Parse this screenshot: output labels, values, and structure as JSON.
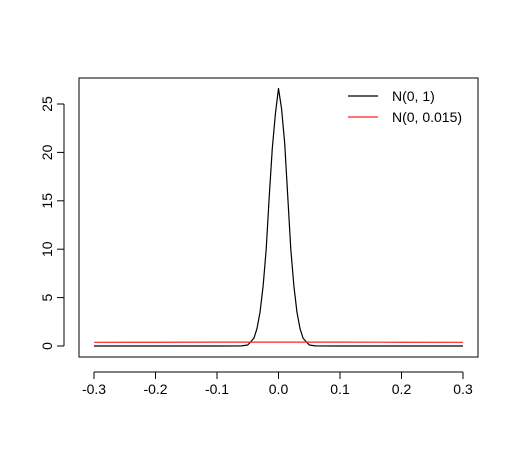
{
  "chart_data": {
    "type": "line",
    "title": "",
    "xlabel": "",
    "ylabel": "",
    "xlim": [
      -0.3,
      0.3
    ],
    "ylim": [
      0,
      26.6
    ],
    "xticks": [
      -0.3,
      -0.2,
      -0.1,
      0.0,
      0.1,
      0.2,
      0.3
    ],
    "xtick_labels": [
      "-0.3",
      "-0.2",
      "-0.1",
      "0.0",
      "0.1",
      "0.2",
      "0.3"
    ],
    "yticks": [
      0,
      5,
      10,
      15,
      20,
      25
    ],
    "ytick_labels": [
      "0",
      "5",
      "10",
      "15",
      "20",
      "25"
    ],
    "grid": false,
    "legend_position": "top-right",
    "series": [
      {
        "name": "N(0, 1)",
        "color": "#000000",
        "x": [
          -0.3,
          -0.1,
          -0.06,
          -0.05,
          -0.04,
          -0.035,
          -0.03,
          -0.025,
          -0.02,
          -0.015,
          -0.01,
          -0.005,
          0.0,
          0.005,
          0.01,
          0.015,
          0.02,
          0.025,
          0.03,
          0.035,
          0.04,
          0.05,
          0.06,
          0.1,
          0.3
        ],
        "y": [
          0.0,
          0.0,
          0.01,
          0.1,
          0.8,
          1.8,
          3.5,
          6.2,
          10.0,
          15.5,
          20.5,
          24.0,
          26.6,
          24.5,
          21.0,
          15.5,
          10.0,
          6.2,
          3.5,
          1.8,
          0.8,
          0.1,
          0.01,
          0.0,
          0.0
        ]
      },
      {
        "name": "N(0, 0.015)",
        "color": "#ff2222",
        "x": [
          -0.3,
          -0.2,
          -0.1,
          0.0,
          0.1,
          0.2,
          0.3
        ],
        "y": [
          0.38,
          0.39,
          0.4,
          0.4,
          0.4,
          0.39,
          0.38
        ]
      }
    ]
  }
}
